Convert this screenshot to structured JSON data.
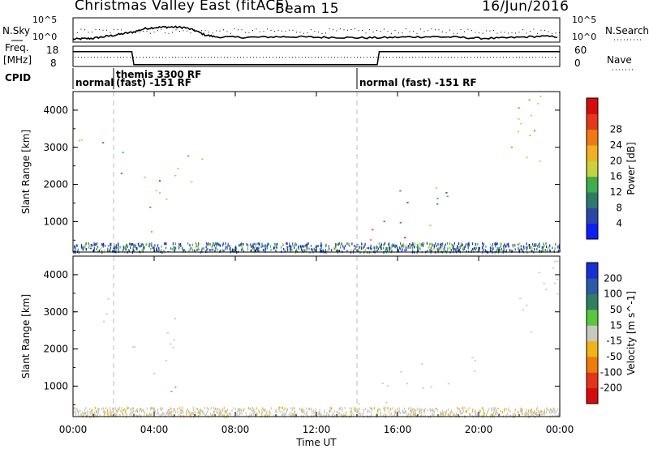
{
  "header": {
    "site": "Christmas Valley East (fitACF)",
    "beam": "Beam 15",
    "date": "16/Jun/2016"
  },
  "nsky_panel": {
    "left_label": "N.Sky",
    "left_ticks": [
      "10^5",
      "10^0"
    ],
    "right_ticks": [
      "10^5",
      "10^0"
    ],
    "right_label": "N.Search",
    "series": [
      {
        "name": "N.Sky",
        "hours": [
          0,
          0.5,
          1,
          1.5,
          2,
          2.5,
          3,
          3.5,
          4,
          4.5,
          5,
          5.5,
          6,
          6.5,
          7,
          8,
          9,
          10,
          11,
          12,
          13,
          14,
          15,
          16,
          17,
          18,
          19,
          20,
          21,
          22,
          23,
          24
        ],
        "level": [
          0.12,
          0.14,
          0.16,
          0.22,
          0.28,
          0.35,
          0.42,
          0.55,
          0.6,
          0.62,
          0.62,
          0.6,
          0.48,
          0.3,
          0.22,
          0.2,
          0.2,
          0.22,
          0.22,
          0.2,
          0.2,
          0.18,
          0.18,
          0.2,
          0.22,
          0.22,
          0.2,
          0.16,
          0.16,
          0.2,
          0.24,
          0.22
        ]
      }
    ]
  },
  "freq_panel": {
    "left_label": "Freq.",
    "left_unit": "[MHz]",
    "left_ticks": [
      18,
      8
    ],
    "right_ticks": [
      60,
      0
    ],
    "right_label": "Nave",
    "freq_steps": [
      [
        0,
        15.5
      ],
      [
        2.9,
        15.5
      ],
      [
        3.0,
        8.5
      ],
      [
        15.0,
        8.5
      ],
      [
        15.1,
        15.5
      ],
      [
        24,
        15.5
      ]
    ],
    "nave_level": 0.45
  },
  "cpid_panel": {
    "label": "CPID",
    "segments": [
      {
        "start": 0,
        "line1": "normal",
        "line2": ""
      },
      {
        "start": 2,
        "line1": "themis 3300 RF",
        "line2": "(fast) -151 RF"
      },
      {
        "start": 14,
        "line1": "normal (fast) -151 RF",
        "line2": ""
      }
    ]
  },
  "power_panel": {
    "ylabel": "Slant Range [km]",
    "yticks": [
      1000,
      2000,
      3000,
      4000
    ],
    "cbar_label": "Power [dB]",
    "cbar_ticks": [
      4,
      8,
      12,
      16,
      20,
      24,
      28
    ],
    "cbar_colors": [
      "#0a1eff",
      "#2b46a8",
      "#2e7a6a",
      "#3cae4e",
      "#c8d23a",
      "#f0b11e",
      "#f07a10",
      "#e63818",
      "#d80a0a"
    ]
  },
  "velocity_panel": {
    "ylabel": "Slant Range [km]",
    "yticks": [
      1000,
      2000,
      3000,
      4000
    ],
    "cbar_label": "Velocity [m s^-1]",
    "cbar_ticks": [
      "200",
      "100",
      "50",
      "15",
      "-15",
      "-50",
      "-100",
      "-200"
    ],
    "cbar_colors": [
      "#1630d8",
      "#2a5aa8",
      "#2f8060",
      "#58c83c",
      "#c8c8bc",
      "#f0b414",
      "#f07a0a",
      "#e63414",
      "#d80a0a"
    ]
  },
  "xaxis": {
    "label": "Time UT",
    "ticks": [
      "00:00",
      "04:00",
      "08:00",
      "12:00",
      "16:00",
      "20:00",
      "00:00"
    ]
  },
  "chart_data": [
    {
      "type": "heatmap",
      "title": "Christmas Valley East (fitACF) Beam 15 16/Jun/2016",
      "xlabel": "Time UT",
      "ylabel": "Slant Range [km]",
      "xlim": [
        0,
        24
      ],
      "ylim": [
        180,
        4500
      ],
      "colorbar": "Power [dB]",
      "clim": [
        0,
        32
      ],
      "features": [
        {
          "t": [
            0.0,
            1.8
          ],
          "range": [
            2700,
            3400
          ],
          "value": 14
        },
        {
          "t": [
            1.6,
            3.0
          ],
          "range": [
            2300,
            3000
          ],
          "value": 12
        },
        {
          "t": [
            2.9,
            4.6
          ],
          "range": [
            1300,
            2300
          ],
          "value": 24
        },
        {
          "t": [
            4.5,
            6.5
          ],
          "range": [
            2000,
            2900
          ],
          "value": 16
        },
        {
          "t": [
            3.5,
            5.0
          ],
          "range": [
            700,
            1000
          ],
          "value": 20
        },
        {
          "t": [
            4.0,
            6.0
          ],
          "range": [
            1600,
            1900
          ],
          "value": 14
        },
        {
          "t": [
            14.0,
            18.0
          ],
          "range": [
            500,
            1100
          ],
          "value": 24
        },
        {
          "t": [
            15.5,
            19.5
          ],
          "range": [
            1400,
            2000
          ],
          "value": 10
        },
        {
          "t": [
            17.0,
            20.0
          ],
          "range": [
            1600,
            1750
          ],
          "value": 12
        },
        {
          "t": [
            21.5,
            24.0
          ],
          "range": [
            2400,
            4400
          ],
          "value": 18
        },
        {
          "t": [
            0.0,
            24.0
          ],
          "range": [
            200,
            450
          ],
          "value": 8
        }
      ]
    },
    {
      "type": "heatmap",
      "title": "",
      "xlabel": "Time UT",
      "ylabel": "Slant Range [km]",
      "xlim": [
        0,
        24
      ],
      "ylim": [
        180,
        4500
      ],
      "colorbar": "Velocity [m s^-1]",
      "clim": [
        -200,
        200
      ],
      "features": [
        {
          "t": [
            0.0,
            1.8
          ],
          "range": [
            2700,
            3400
          ],
          "value": 0
        },
        {
          "t": [
            2.9,
            4.6
          ],
          "range": [
            1300,
            2300
          ],
          "value": 0
        },
        {
          "t": [
            4.5,
            6.5
          ],
          "range": [
            2000,
            2900
          ],
          "value": 0
        },
        {
          "t": [
            4.5,
            6.5
          ],
          "range": [
            700,
            1000
          ],
          "value": 30
        },
        {
          "t": [
            14.0,
            19.0
          ],
          "range": [
            500,
            1100
          ],
          "value": 0
        },
        {
          "t": [
            15.5,
            20.0
          ],
          "range": [
            1400,
            1800
          ],
          "value": -10
        },
        {
          "t": [
            0.0,
            24.0
          ],
          "range": [
            200,
            450
          ],
          "value": -40
        },
        {
          "t": [
            21.5,
            24.0
          ],
          "range": [
            2400,
            4400
          ],
          "value": 0
        }
      ]
    }
  ]
}
